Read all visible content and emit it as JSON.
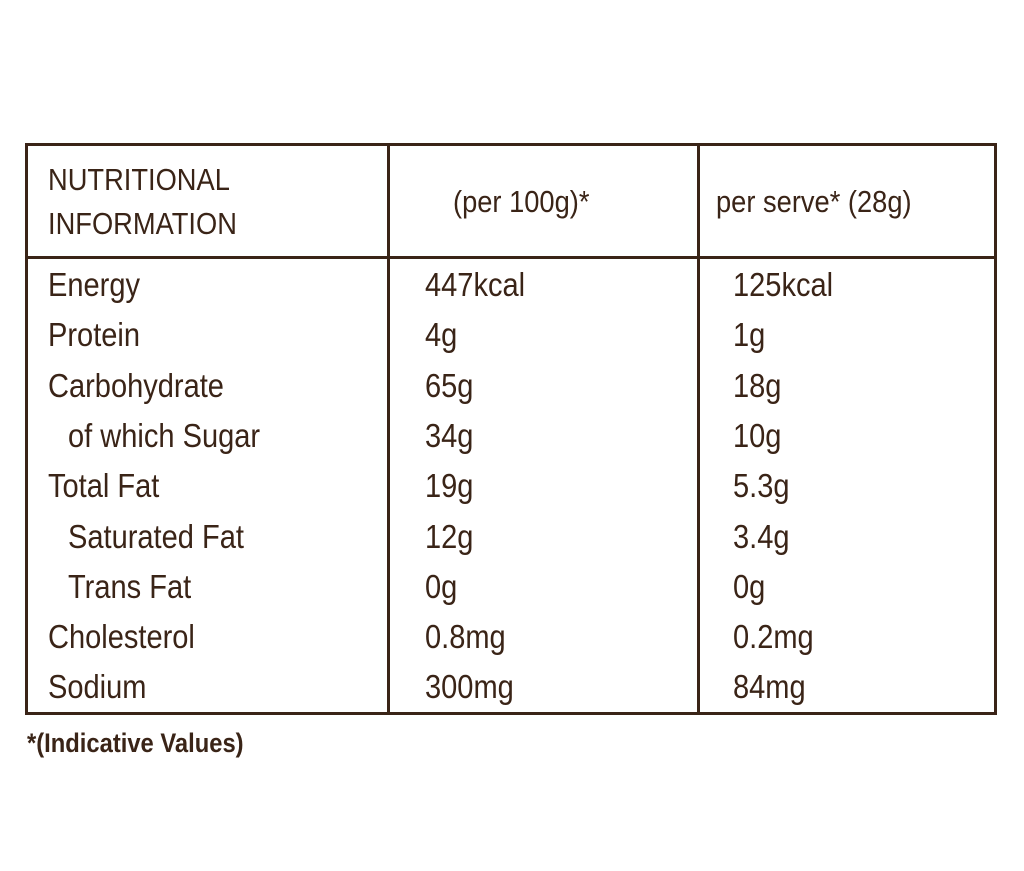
{
  "table": {
    "header": [
      "NUTRITIONAL INFORMATION",
      "(per 100g)*",
      "per serve* (28g)"
    ],
    "rows": [
      [
        "Energy",
        "447kcal",
        "125kcal"
      ],
      [
        "Protein",
        "4g",
        "1g"
      ],
      [
        "Carbohydrate",
        "65g",
        "18g"
      ],
      [
        "of which Sugar",
        "34g",
        "10g"
      ],
      [
        "Total Fat",
        "19g",
        "5.3g"
      ],
      [
        "Saturated Fat",
        "12g",
        "3.4g"
      ],
      [
        "Trans Fat",
        "0g",
        "0g"
      ],
      [
        "Cholesterol",
        "0.8mg",
        "0.2mg"
      ],
      [
        "Sodium",
        "300mg",
        "84mg"
      ]
    ],
    "footnote": "*(Indicative Values)"
  }
}
